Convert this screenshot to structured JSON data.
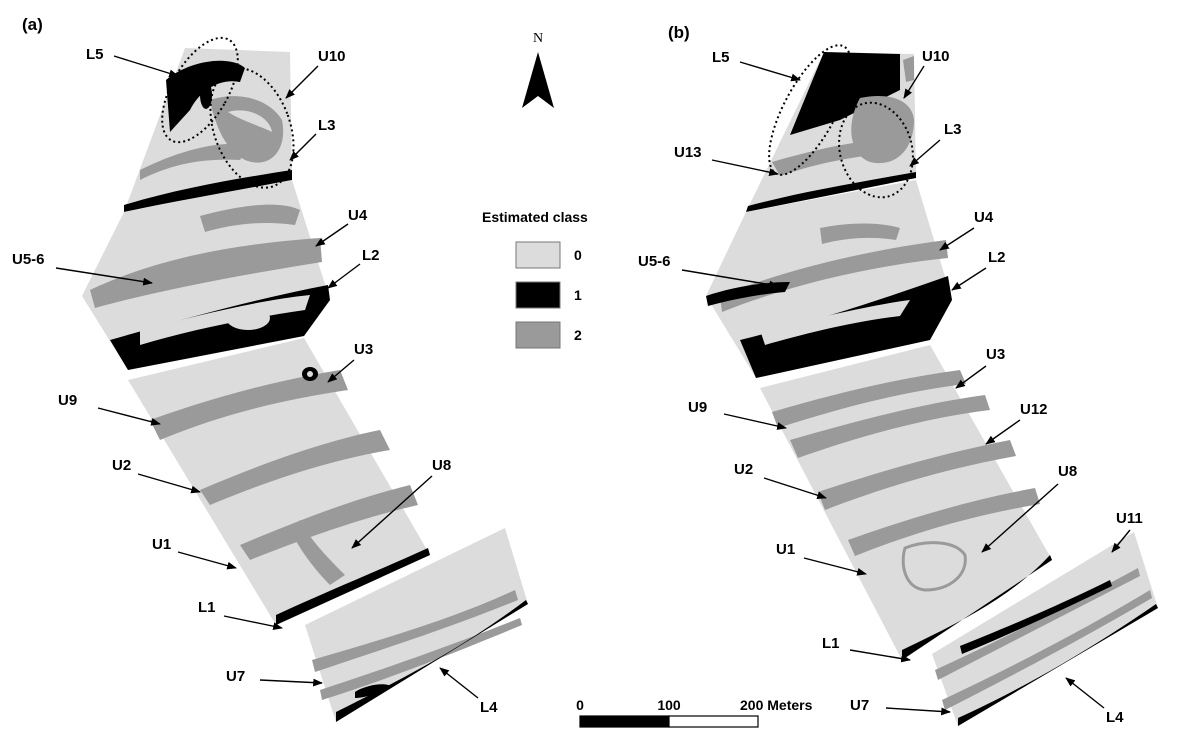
{
  "panels": [
    {
      "id": "a",
      "tag": "(a)",
      "labels": [
        "L5",
        "U10",
        "L3",
        "U4",
        "U5-6",
        "L2",
        "U3",
        "U9",
        "U2",
        "U8",
        "U1",
        "L1",
        "U7",
        "L4"
      ]
    },
    {
      "id": "b",
      "tag": "(b)",
      "labels": [
        "L5",
        "U10",
        "U13",
        "L3",
        "U4",
        "U5-6",
        "L2",
        "U3",
        "U9",
        "U12",
        "U2",
        "U8",
        "U1",
        "U11",
        "L1",
        "U7",
        "L4"
      ]
    }
  ],
  "north_arrow": {
    "letter": "N"
  },
  "legend": {
    "title": "Estimated class",
    "items": [
      {
        "label": "0",
        "color": "#dcdcdc"
      },
      {
        "label": "1",
        "color": "#000000"
      },
      {
        "label": "2",
        "color": "#9a9a9a"
      }
    ]
  },
  "scale_bar": {
    "ticks": [
      "0",
      "100",
      "200 Meters"
    ],
    "segments": [
      {
        "from": 0,
        "to": 100,
        "color": "#000000"
      },
      {
        "from": 100,
        "to": 200,
        "color": "#ffffff"
      }
    ]
  },
  "colors": {
    "class0": "#dcdcdc",
    "class1": "#000000",
    "class2": "#9a9a9a"
  }
}
